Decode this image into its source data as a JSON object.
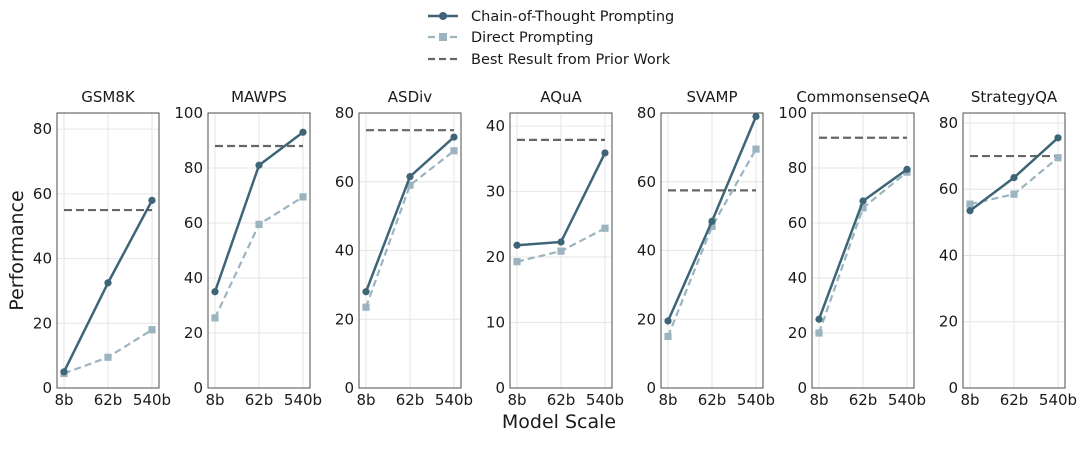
{
  "chart_data": {
    "type": "line",
    "ylabel": "Performance",
    "xlabel": "Model Scale",
    "categories": [
      "8b",
      "62b",
      "540b"
    ],
    "legend": {
      "placement": "top-center",
      "entries": [
        {
          "name": "Chain-of-Thought Prompting",
          "style": "solid",
          "marker": "circle",
          "color": "#3d6577"
        },
        {
          "name": "Direct Prompting",
          "style": "dashed",
          "marker": "square",
          "color": "#9cb4c0"
        },
        {
          "name": "Best Result from Prior Work",
          "style": "dashed",
          "marker": "none",
          "color": "#666666"
        }
      ]
    },
    "panels": [
      {
        "title": "GSM8K",
        "ylim": [
          0,
          85
        ],
        "yticks": [
          0,
          20,
          40,
          60,
          80
        ],
        "series": [
          {
            "name": "Chain-of-Thought Prompting",
            "values": [
              5,
              32.5,
              58
            ]
          },
          {
            "name": "Direct Prompting",
            "values": [
              4.5,
              9.5,
              18
            ]
          }
        ],
        "prior_best": 55
      },
      {
        "title": "MAWPS",
        "ylim": [
          0,
          100
        ],
        "yticks": [
          0,
          20,
          40,
          60,
          80,
          100
        ],
        "series": [
          {
            "name": "Chain-of-Thought Prompting",
            "values": [
              35,
              81,
              93
            ]
          },
          {
            "name": "Direct Prompting",
            "values": [
              25.5,
              59.5,
              69.5
            ]
          }
        ],
        "prior_best": 88
      },
      {
        "title": "ASDiv",
        "ylim": [
          0,
          80
        ],
        "yticks": [
          0,
          20,
          40,
          60,
          80
        ],
        "series": [
          {
            "name": "Chain-of-Thought Prompting",
            "values": [
              28,
              61.5,
              73
            ]
          },
          {
            "name": "Direct Prompting",
            "values": [
              23.5,
              59,
              69
            ]
          }
        ],
        "prior_best": 75
      },
      {
        "title": "AQuA",
        "ylim": [
          0,
          42
        ],
        "yticks": [
          0,
          10,
          20,
          30,
          40
        ],
        "series": [
          {
            "name": "Chain-of-Thought Prompting",
            "values": [
              21.8,
              22.3,
              35.9
            ]
          },
          {
            "name": "Direct Prompting",
            "values": [
              19.3,
              20.9,
              24.4
            ]
          }
        ],
        "prior_best": 37.9
      },
      {
        "title": "SVAMP",
        "ylim": [
          0,
          80
        ],
        "yticks": [
          0,
          20,
          40,
          60,
          80
        ],
        "series": [
          {
            "name": "Chain-of-Thought Prompting",
            "values": [
              19.5,
              48.5,
              79
            ]
          },
          {
            "name": "Direct Prompting",
            "values": [
              15,
              47,
              69.5
            ]
          }
        ],
        "prior_best": 57.5
      },
      {
        "title": "CommonsenseQA",
        "ylim": [
          0,
          100
        ],
        "yticks": [
          0,
          20,
          40,
          60,
          80,
          100
        ],
        "series": [
          {
            "name": "Chain-of-Thought Prompting",
            "values": [
              25,
              68,
              79.5
            ]
          },
          {
            "name": "Direct Prompting",
            "values": [
              20,
              65.5,
              78.5
            ]
          }
        ],
        "prior_best": 91
      },
      {
        "title": "StrategyQA",
        "ylim": [
          0,
          83
        ],
        "yticks": [
          0,
          20,
          40,
          60,
          80
        ],
        "series": [
          {
            "name": "Chain-of-Thought Prompting",
            "values": [
              53.5,
              63.5,
              75.5
            ]
          },
          {
            "name": "Direct Prompting",
            "values": [
              55.5,
              58.5,
              69.5
            ]
          }
        ],
        "prior_best": 70
      }
    ]
  }
}
